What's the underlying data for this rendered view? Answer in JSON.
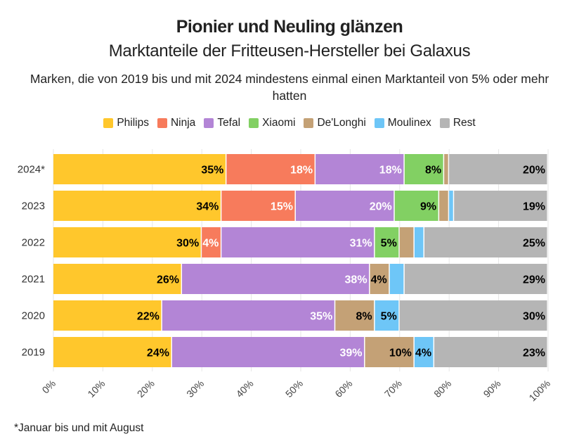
{
  "chart_data": {
    "type": "bar",
    "orientation": "horizontal-stacked-100",
    "title": "Pionier und Neuling glänzen",
    "subtitle": "Marktanteile der Fritteusen-Hersteller bei Galaxus",
    "description": "Marken, die von 2019 bis und mit 2024 mindestens einmal einen Marktanteil von 5% oder mehr hatten",
    "footnote": "*Januar bis und mit August",
    "categories": [
      "2024*",
      "2023",
      "2022",
      "2021",
      "2020",
      "2019"
    ],
    "series": [
      {
        "name": "Philips",
        "color": "#ffc72c",
        "label_color": "#000",
        "values": [
          35,
          34,
          30,
          26,
          22,
          24
        ]
      },
      {
        "name": "Ninja",
        "color": "#f77b5c",
        "label_color": "#fff",
        "values": [
          18,
          15,
          4,
          0,
          0,
          0
        ]
      },
      {
        "name": "Tefal",
        "color": "#b385d6",
        "label_color": "#fff",
        "values": [
          18,
          20,
          31,
          38,
          35,
          39
        ]
      },
      {
        "name": "Xiaomi",
        "color": "#82d063",
        "label_color": "#000",
        "values": [
          8,
          9,
          5,
          0,
          0,
          0
        ]
      },
      {
        "name": "De'Longhi",
        "color": "#c4a176",
        "label_color": "#000",
        "values": [
          1,
          2,
          3,
          4,
          8,
          10
        ]
      },
      {
        "name": "Moulinex",
        "color": "#6ec6f7",
        "label_color": "#000",
        "values": [
          0,
          1,
          2,
          3,
          5,
          4
        ]
      },
      {
        "name": "Rest",
        "color": "#b5b5b5",
        "label_color": "#000",
        "values": [
          20,
          19,
          25,
          29,
          30,
          23
        ]
      }
    ],
    "xticks": [
      "0%",
      "10%",
      "20%",
      "30%",
      "40%",
      "50%",
      "60%",
      "70%",
      "80%",
      "90%",
      "100%"
    ],
    "xlim": [
      0,
      100
    ],
    "label_threshold": 4,
    "legend_position": "top"
  }
}
